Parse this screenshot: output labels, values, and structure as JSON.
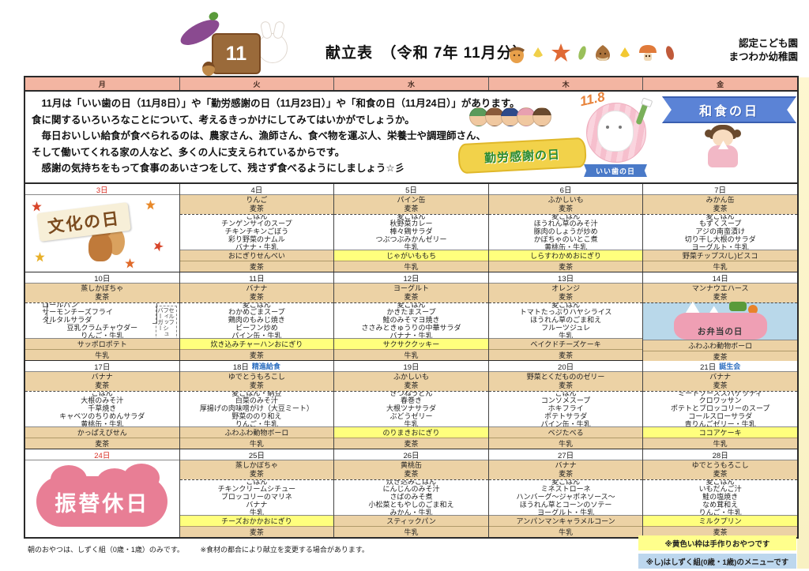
{
  "header": {
    "title": "献立表　（令和 7年 11月分）",
    "school_line1": "認定こども園",
    "school_line2": "まつわか幼稚園",
    "month_label": "11"
  },
  "days": [
    "月",
    "火",
    "水",
    "木",
    "金"
  ],
  "intro": {
    "lines": [
      "　11月は「いい歯の日（11月8日）」や「勤労感謝の日（11月23日）」や「和食の日（11月24日）」があります。",
      "食に関するいろいろなことについて、考えるきっかけにしてみてはいかがでしょうか。",
      "　毎日おいしい給食が食べられるのは、農家さん、漁師さん、食べ物を運ぶ人、栄養士や調理師さん、",
      "そして働いてくれる家の人など、多くの人に支えられているからです。",
      "　感謝の気持ちをもって食事のあいさつをして、残さず食べるようにしましょう☆彡"
    ],
    "badges": {
      "kinro": "勤労感謝の日",
      "iiha_date": "11.8",
      "iiha": "いい歯の日",
      "washoku": "和食の日"
    }
  },
  "weeks": [
    {
      "days": [
        {
          "date": "3日",
          "red": true,
          "type": "holiday",
          "holiday": "文化の日",
          "style": "bunka"
        },
        {
          "date": "4日",
          "am": [
            "りんご",
            "麦茶"
          ],
          "lunch": [
            "ごはん",
            "チンゲンサイのスープ",
            "チキンチキンごぼう",
            "彩り野菜のナムル",
            "バナナ・牛乳"
          ],
          "pm": "おにぎりせんべい",
          "pm_hl": false,
          "pm_drink": "麦茶"
        },
        {
          "date": "5日",
          "am": [
            "パイン缶",
            "麦茶"
          ],
          "lunch": [
            "麦ごはん",
            "秋野菜カレー",
            "棒々鶏サラダ",
            "つぶつぶみかんゼリー",
            "牛乳"
          ],
          "pm": "じゃがいももち",
          "pm_hl": true,
          "pm_drink": "牛乳"
        },
        {
          "date": "6日",
          "am": [
            "ふかしいも",
            "麦茶"
          ],
          "lunch": [
            "麦ごはん",
            "ほうれん草のみそ汁",
            "豚肉のしょうが炒め",
            "かぼちゃのいとこ煮",
            "黄桃缶・牛乳"
          ],
          "pm": "しらすわかめおにぎり",
          "pm_hl": true,
          "pm_drink": "麦茶"
        },
        {
          "date": "7日",
          "am": [
            "みかん缶",
            "麦茶"
          ],
          "lunch": [
            "麦ごはん",
            "もずくスープ",
            "アジの南蛮漬け",
            "切り干し大根のサラダ",
            "ヨーグルト・牛乳"
          ],
          "pm": "野菜チップス/し)ビスコ",
          "pm_hl": false,
          "pm_drink": "牛乳"
        }
      ]
    },
    {
      "days": [
        {
          "date": "10日",
          "am": [
            "蒸しかぼちゃ",
            "麦茶"
          ],
          "lunch": [
            "ロールパン",
            "サーモンチーズフライ",
            "タルタルサラダ",
            "豆乳クラムチャウダー",
            "りんご・牛乳"
          ],
          "bracket": 3,
          "side_note": [
            "セルフ",
            "フィッシュ",
            "バーガー"
          ],
          "pm": "サッポロポテト",
          "pm_hl": false,
          "pm_drink": "牛乳"
        },
        {
          "date": "11日",
          "am": [
            "バナナ",
            "麦茶"
          ],
          "lunch": [
            "麦ごはん",
            "わかめごまスープ",
            "鶏肉のもみじ焼き",
            "ビーフン炒め",
            "パイン缶・牛乳"
          ],
          "pm": "炊き込みチャーハンおにぎり",
          "pm_hl": true,
          "pm_drink": "麦茶"
        },
        {
          "date": "12日",
          "am": [
            "ヨーグルト",
            "麦茶"
          ],
          "lunch": [
            "麦ごはん",
            "かきたまスープ",
            "鮭のみそマヨ焼き",
            "ささみときゅうりの中華サラダ",
            "バナナ・牛乳"
          ],
          "pm": "サクサククッキー",
          "pm_hl": true,
          "pm_drink": "牛乳"
        },
        {
          "date": "13日",
          "am": [
            "オレンジ",
            "麦茶"
          ],
          "lunch": [
            "麦ごはん",
            "トマトたっぷりハヤシライス",
            "ほうれん草のごま和え",
            "フルーツジュレ",
            "牛乳"
          ],
          "pm": "ベイクドチーズケーキ",
          "pm_hl": false,
          "pm_drink": "麦茶"
        },
        {
          "date": "14日",
          "type": "bento",
          "bento_label": "お弁当の日",
          "am": [
            "マンナウエハース",
            "麦茶"
          ],
          "pm": "ふわふわ動物ボーロ",
          "pm_hl": false,
          "pm_drink": "麦茶"
        }
      ]
    },
    {
      "days": [
        {
          "date": "17日",
          "am": [
            "バナナ",
            "麦茶"
          ],
          "lunch": [
            "ごはん",
            "大根のみそ汁",
            "千草焼き",
            "キャベツのちりめんサラダ",
            "黄桃缶・牛乳"
          ],
          "pm": "かっぱえびせん",
          "pm_hl": false,
          "pm_drink": "麦茶"
        },
        {
          "date": "18日",
          "special": "精進給食",
          "am": [
            "ゆでとうもろこし",
            "麦茶"
          ],
          "lunch": [
            "麦ごはん・納豆",
            "白菜のみそ汁",
            "厚揚げの肉味噌がけ（大豆ミート）",
            "野菜ののり和え",
            "りんご・牛乳"
          ],
          "pm": "ふわふわ動物ボーロ",
          "pm_hl": false,
          "pm_drink": "牛乳"
        },
        {
          "date": "19日",
          "am": [
            "ふかしいも",
            "麦茶"
          ],
          "lunch": [
            "きつねうどん",
            "春巻き",
            "大根ツナサラダ",
            "ぶどうゼリー",
            "牛乳"
          ],
          "pm": "のりまきおにぎり",
          "pm_hl": true,
          "pm_drink": "麦茶"
        },
        {
          "date": "20日",
          "am": [
            "野菜とくだもののゼリー",
            "麦茶"
          ],
          "lunch": [
            "ごはん",
            "コンソメスープ",
            "ホキフライ",
            "ポテトサラダ",
            "パイン缶・牛乳"
          ],
          "pm": "ベジたべる",
          "pm_hl": false,
          "pm_drink": "牛乳"
        },
        {
          "date": "21日",
          "special": "誕生会",
          "am": [
            "バナナ",
            "麦茶"
          ],
          "lunch": [
            "ミートソーススパゲッティ",
            "クロワッサン",
            "ポテトとブロッコリーのスープ",
            "コールスローサラダ",
            "青りんごゼリー・牛乳"
          ],
          "pm": "ココアケーキ",
          "pm_hl": true,
          "pm_drink": "牛乳"
        }
      ]
    },
    {
      "days": [
        {
          "date": "24日",
          "red": true,
          "type": "holiday",
          "holiday": "振替休日",
          "style": "furikae"
        },
        {
          "date": "25日",
          "am": [
            "蒸しかぼちゃ",
            "麦茶"
          ],
          "lunch": [
            "ごはん",
            "チキンクリームシチュー",
            "ブロッコリーのマリネ",
            "バナナ",
            "牛乳"
          ],
          "pm": "チーズおかかおにぎり",
          "pm_hl": true,
          "pm_drink": "麦茶"
        },
        {
          "date": "26日",
          "am": [
            "黄桃缶",
            "麦茶"
          ],
          "lunch": [
            "炊き込みごはん",
            "にんじんのみそ汁",
            "さばのみそ煮",
            "小松菜ともやしのごま和え",
            "みかん・牛乳"
          ],
          "pm": "スティックパン",
          "pm_hl": false,
          "pm_drink": "牛乳"
        },
        {
          "date": "27日",
          "am": [
            "バナナ",
            "麦茶"
          ],
          "lunch": [
            "麦ごはん",
            "ミネストローネ",
            "ハンバーグ～ジャポネソース～",
            "ほうれん草とコーンのソテー",
            "ヨーグルト・牛乳"
          ],
          "pm": "アンパンマンキャラメルコーン",
          "pm_hl": false,
          "pm_drink": "牛乳"
        },
        {
          "date": "28日",
          "am": [
            "ゆでとうもろこし",
            "麦茶"
          ],
          "lunch": [
            "麦ごはん",
            "いもだんご汁",
            "鮭の塩焼き",
            "なめ茸和え",
            "りんご・牛乳"
          ],
          "pm": "ミルクプリン",
          "pm_hl": true,
          "pm_drink": "麦茶"
        }
      ]
    }
  ],
  "footer": {
    "left1": "朝のおやつは、しずく組（0歳・1歳）のみです。",
    "left2": "※食材の都合により献立を変更する場合があります。",
    "note_yellow": "※黄色い枠は手作りおやつです",
    "note_blue": "※し)はしずく組(0歳・1歳)のメニューです"
  },
  "colors": {
    "header_pink": "#f3b5a2",
    "snack_beige": "#ecd2a5",
    "handmade_yellow": "#ffff7d",
    "bento_blue": "#b9d8ea",
    "note_blue": "#bdd7ee",
    "note_yellow": "#ffff8c",
    "date_red": "#d93025",
    "event_blue": "#2e6fc0",
    "holiday_pink": "#e87e95",
    "banner_blue": "#5b83d6"
  }
}
